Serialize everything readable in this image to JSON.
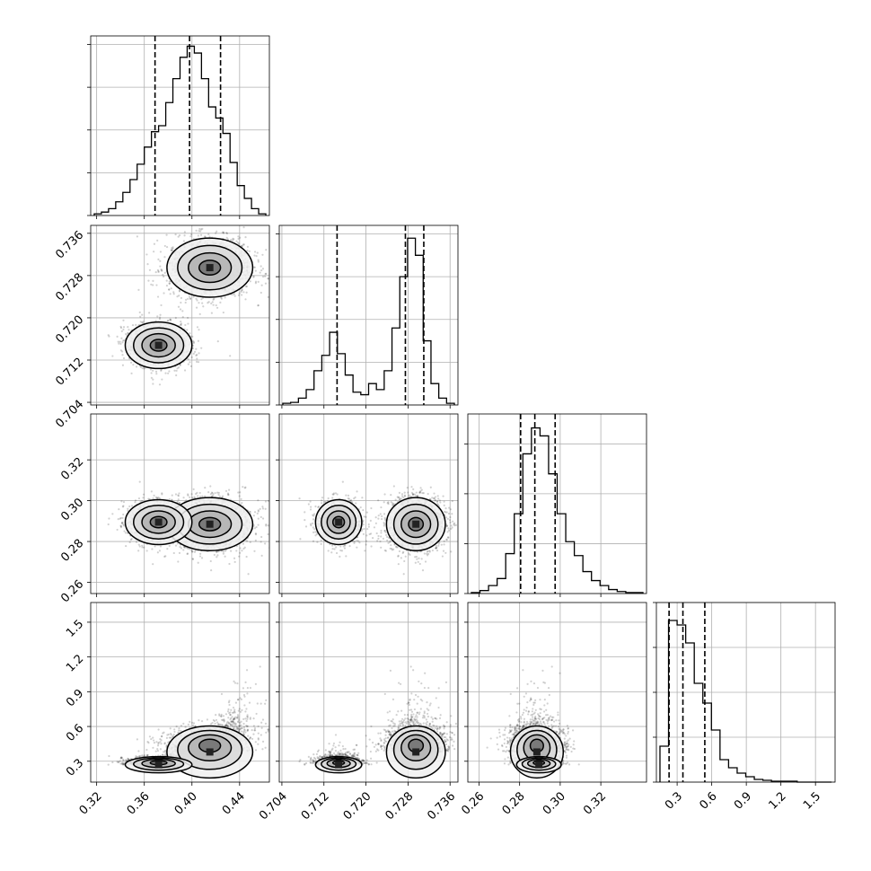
{
  "chart_data": {
    "type": "corner",
    "params": [
      {
        "key": "p1",
        "range": [
          0.315,
          0.465
        ],
        "ticks": [
          "0.32",
          "0.36",
          "0.40",
          "0.44"
        ],
        "quantiles": [
          0.369,
          0.398,
          0.424
        ],
        "histogram": {
          "counts": [
            2,
            4,
            8,
            16,
            27,
            42,
            60,
            80,
            98,
            105,
            132,
            160,
            185,
            198,
            190,
            160,
            127,
            114,
            96,
            62,
            35,
            20,
            8,
            2
          ],
          "ymax": 210
        },
        "clusters": []
      },
      {
        "key": "p2",
        "range": [
          0.7035,
          0.7375
        ],
        "ticks": [
          "0.704",
          "0.712",
          "0.720",
          "0.728",
          "0.736"
        ],
        "quantiles": [
          0.7145,
          0.7275,
          0.731
        ],
        "histogram": {
          "counts": [
            2,
            3,
            8,
            18,
            40,
            58,
            85,
            60,
            35,
            15,
            12,
            25,
            18,
            40,
            90,
            150,
            195,
            175,
            75,
            25,
            8,
            2
          ],
          "ymax": 210
        }
      },
      {
        "key": "p3",
        "range": [
          0.2545,
          0.3425
        ],
        "ticks": [
          "0.26",
          "0.28",
          "0.30",
          "0.32"
        ],
        "quantiles": [
          0.2805,
          0.2875,
          0.2975
        ],
        "histogram": {
          "counts": [
            1,
            3,
            8,
            15,
            40,
            80,
            140,
            166,
            158,
            120,
            80,
            52,
            38,
            22,
            13,
            8,
            4,
            2,
            1,
            1
          ],
          "ymax": 180
        }
      },
      {
        "key": "p4",
        "range": [
          0.12,
          1.67
        ],
        "ticks": [
          "0.3",
          "0.6",
          "0.9",
          "1.2",
          "1.5"
        ],
        "quantiles": [
          0.23,
          0.35,
          0.54
        ],
        "histogram": {
          "counts": [
            40,
            180,
            175,
            155,
            110,
            88,
            58,
            25,
            16,
            10,
            6,
            3,
            2,
            1,
            1,
            1,
            0,
            0,
            0,
            0
          ],
          "ymax": 200
        }
      }
    ],
    "clusters": [
      {
        "p1": 0.415,
        "p2": 0.7295,
        "p3": 0.2885,
        "p4": 0.38,
        "s1": 0.018,
        "s2": 0.0028,
        "s3": 0.0065,
        "s4": 0.16,
        "w": 0.62
      },
      {
        "p1": 0.372,
        "p2": 0.7148,
        "p3": 0.2895,
        "p4": 0.27,
        "s1": 0.014,
        "s2": 0.0022,
        "s3": 0.0055,
        "s4": 0.05,
        "w": 0.38
      }
    ],
    "grid": true,
    "contour_levels": [
      "0.5σ",
      "1σ",
      "1.5σ",
      "2σ"
    ]
  }
}
